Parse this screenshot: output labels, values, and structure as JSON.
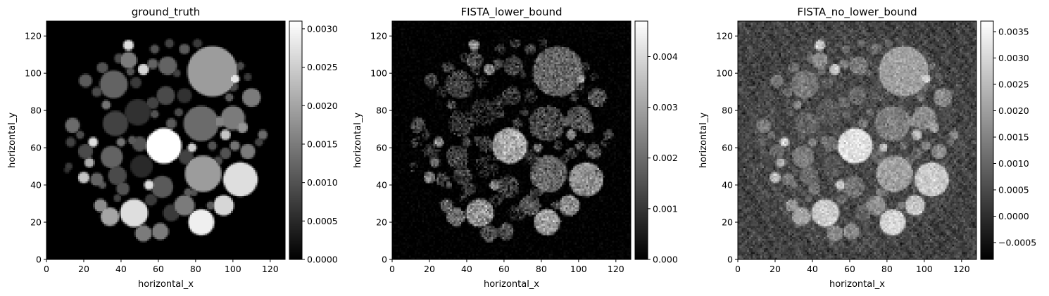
{
  "chart_data": [
    {
      "type": "heatmap",
      "title": "ground_truth",
      "xlabel": "horizontal_x",
      "ylabel": "horizontal_y",
      "xlim": [
        0,
        128
      ],
      "ylim": [
        0,
        128
      ],
      "xticks": [
        "0",
        "20",
        "40",
        "60",
        "80",
        "100",
        "120"
      ],
      "yticks": [
        "0",
        "20",
        "40",
        "60",
        "80",
        "100",
        "120"
      ],
      "colormap": "gray",
      "colorbar": {
        "range": [
          0,
          0.0031
        ],
        "ticks": [
          0,
          0.0005,
          0.001,
          0.0015,
          0.002,
          0.0025,
          0.003
        ],
        "tick_labels": [
          "0.0000",
          "0.0005",
          "0.0010",
          "0.0015",
          "0.0020",
          "0.0025",
          "0.0030"
        ]
      },
      "background": 0.0,
      "noise": 0.0
    },
    {
      "type": "heatmap",
      "title": "FISTA_lower_bound",
      "xlabel": "horizontal_x",
      "ylabel": "horizontal_y",
      "xlim": [
        0,
        128
      ],
      "ylim": [
        0,
        128
      ],
      "xticks": [
        "0",
        "20",
        "40",
        "60",
        "80",
        "100",
        "120"
      ],
      "yticks": [
        "0",
        "20",
        "40",
        "60",
        "80",
        "100",
        "120"
      ],
      "colormap": "gray",
      "colorbar": {
        "range": [
          0,
          0.0047
        ],
        "ticks": [
          0,
          0.001,
          0.002,
          0.003,
          0.004
        ],
        "tick_labels": [
          "0.000",
          "0.001",
          "0.002",
          "0.003",
          "0.004"
        ]
      },
      "background": 0.0,
      "noise": 0.00045
    },
    {
      "type": "heatmap",
      "title": "FISTA_no_lower_bound",
      "xlabel": "horizontal_x",
      "ylabel": "horizontal_y",
      "xlim": [
        0,
        128
      ],
      "ylim": [
        0,
        128
      ],
      "xticks": [
        "0",
        "20",
        "40",
        "60",
        "80",
        "100",
        "120"
      ],
      "yticks": [
        "0",
        "20",
        "40",
        "60",
        "80",
        "100",
        "120"
      ],
      "colormap": "gray",
      "colorbar": {
        "range": [
          -0.00082,
          0.0037
        ],
        "ticks": [
          -0.0005,
          0,
          0.0005,
          0.001,
          0.0015,
          0.002,
          0.0025,
          0.003,
          0.0035
        ],
        "tick_labels": [
          "−0.0005",
          "0.0000",
          "0.0005",
          "0.0010",
          "0.0015",
          "0.0020",
          "0.0025",
          "0.0030",
          "0.0035"
        ]
      },
      "background": 0.0,
      "noise": 0.00025
    }
  ],
  "phantom_disks": [
    {
      "x": 89,
      "y": 101,
      "r": 13.5,
      "v": 0.0019
    },
    {
      "x": 63,
      "y": 61,
      "r": 9.5,
      "v": 0.0031
    },
    {
      "x": 84,
      "y": 46,
      "r": 9.8,
      "v": 0.0019
    },
    {
      "x": 104,
      "y": 43,
      "r": 9.2,
      "v": 0.0027
    },
    {
      "x": 83,
      "y": 73,
      "r": 9.5,
      "v": 0.0013
    },
    {
      "x": 47,
      "y": 25,
      "r": 7.5,
      "v": 0.0027
    },
    {
      "x": 83,
      "y": 20,
      "r": 7.0,
      "v": 0.0029
    },
    {
      "x": 36,
      "y": 94,
      "r": 7.5,
      "v": 0.0012
    },
    {
      "x": 49,
      "y": 79,
      "r": 7.0,
      "v": 0.0006
    },
    {
      "x": 37,
      "y": 73,
      "r": 6.8,
      "v": 0.0008
    },
    {
      "x": 100,
      "y": 76,
      "r": 6.5,
      "v": 0.0015
    },
    {
      "x": 35,
      "y": 55,
      "r": 6.0,
      "v": 0.0012
    },
    {
      "x": 51,
      "y": 50,
      "r": 6.0,
      "v": 0.0005
    },
    {
      "x": 62,
      "y": 39,
      "r": 6.0,
      "v": 0.0011
    },
    {
      "x": 74,
      "y": 29,
      "r": 5.5,
      "v": 0.0015
    },
    {
      "x": 95,
      "y": 29,
      "r": 5.5,
      "v": 0.0026
    },
    {
      "x": 34,
      "y": 23,
      "r": 5.0,
      "v": 0.002
    },
    {
      "x": 38,
      "y": 45,
      "r": 5.0,
      "v": 0.0009
    },
    {
      "x": 61,
      "y": 15,
      "r": 4.5,
      "v": 0.0015
    },
    {
      "x": 52,
      "y": 14,
      "r": 4.5,
      "v": 0.0015
    },
    {
      "x": 110,
      "y": 87,
      "r": 5.0,
      "v": 0.0015
    },
    {
      "x": 65,
      "y": 104,
      "r": 5.0,
      "v": 0.0012
    },
    {
      "x": 44,
      "y": 107,
      "r": 4.5,
      "v": 0.0015
    },
    {
      "x": 74,
      "y": 88,
      "r": 4.0,
      "v": 0.0006
    },
    {
      "x": 64,
      "y": 88,
      "r": 5.0,
      "v": 0.0009
    },
    {
      "x": 50,
      "y": 62,
      "r": 4.0,
      "v": 0.001
    },
    {
      "x": 67,
      "y": 25,
      "r": 4.5,
      "v": 0.0007
    },
    {
      "x": 108,
      "y": 58,
      "r": 4.0,
      "v": 0.0015
    },
    {
      "x": 75,
      "y": 55,
      "r": 4.0,
      "v": 0.0008
    },
    {
      "x": 14,
      "y": 72,
      "r": 4.0,
      "v": 0.0013
    },
    {
      "x": 21,
      "y": 58,
      "r": 4.0,
      "v": 0.0009
    },
    {
      "x": 27,
      "y": 43,
      "r": 3.5,
      "v": 0.0012
    },
    {
      "x": 21,
      "y": 96,
      "r": 3.5,
      "v": 0.0011
    },
    {
      "x": 29,
      "y": 29,
      "r": 3.5,
      "v": 0.0017
    },
    {
      "x": 41,
      "y": 38,
      "r": 3.5,
      "v": 0.001
    },
    {
      "x": 56,
      "y": 32,
      "r": 3.2,
      "v": 0.0007
    },
    {
      "x": 57,
      "y": 84,
      "r": 3.2,
      "v": 0.0008
    },
    {
      "x": 96,
      "y": 57,
      "r": 3.0,
      "v": 0.001
    },
    {
      "x": 79,
      "y": 96,
      "r": 3.0,
      "v": 0.0009
    },
    {
      "x": 30,
      "y": 103,
      "r": 3.0,
      "v": 0.001
    },
    {
      "x": 52,
      "y": 102,
      "r": 3.0,
      "v": 0.0026
    },
    {
      "x": 105,
      "y": 71,
      "r": 3.0,
      "v": 0.0018
    },
    {
      "x": 48,
      "y": 95,
      "r": 3.0,
      "v": 0.0007
    },
    {
      "x": 44,
      "y": 115,
      "r": 2.8,
      "v": 0.0027
    },
    {
      "x": 74,
      "y": 113,
      "r": 2.8,
      "v": 0.0011
    },
    {
      "x": 93,
      "y": 74,
      "r": 2.8,
      "v": 0.0016
    },
    {
      "x": 67,
      "y": 73,
      "r": 2.8,
      "v": 0.0011
    },
    {
      "x": 96,
      "y": 67,
      "r": 2.8,
      "v": 0.0024
    },
    {
      "x": 57,
      "y": 105,
      "r": 2.8,
      "v": 0.0012
    },
    {
      "x": 100,
      "y": 93,
      "r": 2.8,
      "v": 0.0009
    },
    {
      "x": 13,
      "y": 63,
      "r": 2.6,
      "v": 0.0008
    },
    {
      "x": 20,
      "y": 44,
      "r": 3.0,
      "v": 0.0024
    },
    {
      "x": 116,
      "y": 67,
      "r": 2.6,
      "v": 0.0013
    },
    {
      "x": 101,
      "y": 61,
      "r": 2.6,
      "v": 0.0014
    },
    {
      "x": 27,
      "y": 90,
      "r": 2.6,
      "v": 0.0009
    },
    {
      "x": 23,
      "y": 52,
      "r": 2.6,
      "v": 0.0021
    },
    {
      "x": 25,
      "y": 63,
      "r": 2.6,
      "v": 0.0027
    },
    {
      "x": 39,
      "y": 108,
      "r": 2.6,
      "v": 0.0009
    },
    {
      "x": 81,
      "y": 116,
      "r": 2.4,
      "v": 0.0007
    },
    {
      "x": 66,
      "y": 116,
      "r": 2.4,
      "v": 0.0008
    },
    {
      "x": 58,
      "y": 113,
      "r": 2.4,
      "v": 0.001
    },
    {
      "x": 101,
      "y": 97,
      "r": 2.4,
      "v": 0.0028
    },
    {
      "x": 104,
      "y": 104,
      "r": 2.2,
      "v": 0.0009
    },
    {
      "x": 32,
      "y": 83,
      "r": 2.4,
      "v": 0.0014
    },
    {
      "x": 55,
      "y": 40,
      "r": 2.6,
      "v": 0.0027
    },
    {
      "x": 78,
      "y": 60,
      "r": 2.4,
      "v": 0.0025
    },
    {
      "x": 89,
      "y": 61,
      "r": 2.4,
      "v": 0.001
    },
    {
      "x": 92,
      "y": 53,
      "r": 2.4,
      "v": 0.0009
    },
    {
      "x": 65,
      "y": 55,
      "r": 2.2,
      "v": 0.0006
    },
    {
      "x": 71,
      "y": 79,
      "r": 2.2,
      "v": 0.0009
    },
    {
      "x": 40,
      "y": 63,
      "r": 2.4,
      "v": 0.0014
    },
    {
      "x": 58,
      "y": 78,
      "r": 2.2,
      "v": 0.001
    },
    {
      "x": 98,
      "y": 87,
      "r": 2.2,
      "v": 0.0011
    },
    {
      "x": 88,
      "y": 29,
      "r": 2.2,
      "v": 0.0011
    },
    {
      "x": 114,
      "y": 63,
      "r": 2.2,
      "v": 0.0008
    },
    {
      "x": 76,
      "y": 36,
      "r": 2.2,
      "v": 0.0011
    },
    {
      "x": 46,
      "y": 64,
      "r": 2.2,
      "v": 0.0011
    },
    {
      "x": 18,
      "y": 67,
      "r": 2.2,
      "v": 0.0009
    },
    {
      "x": 12,
      "y": 50,
      "r": 2.0,
      "v": 0.0007
    },
    {
      "x": 45,
      "y": 101,
      "r": 2.2,
      "v": 0.001
    },
    {
      "x": 108,
      "y": 98,
      "r": 2.0,
      "v": 0.0007
    },
    {
      "x": 30,
      "y": 40,
      "r": 2.0,
      "v": 0.0011
    },
    {
      "x": 70,
      "y": 100,
      "r": 2.0,
      "v": 0.0008
    },
    {
      "x": 38,
      "y": 33,
      "r": 2.0,
      "v": 0.0008
    },
    {
      "x": 79,
      "y": 36,
      "r": 2.0,
      "v": 0.001
    },
    {
      "x": 11,
      "y": 48,
      "r": 1.6,
      "v": 0.0006
    }
  ]
}
